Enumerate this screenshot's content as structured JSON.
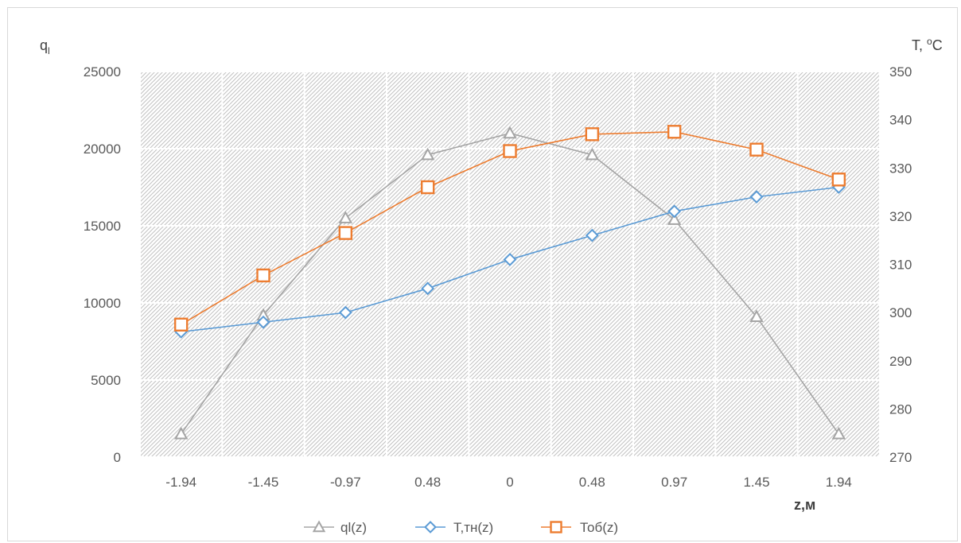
{
  "chart_data": {
    "type": "line",
    "y_left_label": "q",
    "y_left_label_sub": "l",
    "y_right_label": "T, ",
    "y_right_label_sup": "o",
    "y_right_label_unit": "C",
    "xlabel": "z,м",
    "categories": [
      "-1.94",
      "-1.45",
      "-0.97",
      "0.48",
      "0",
      "0.48",
      "0.97",
      "1.45",
      "1.94"
    ],
    "y_left_ticks": [
      "0",
      "5000",
      "10000",
      "15000",
      "20000",
      "25000"
    ],
    "y_right_ticks": [
      "270",
      "280",
      "290",
      "300",
      "310",
      "320",
      "330",
      "340",
      "350"
    ],
    "ylim_left": [
      0,
      25000
    ],
    "ylim_right": [
      270,
      350
    ],
    "grid": true,
    "legend_position": "bottom",
    "series": [
      {
        "name": "ql(z)",
        "axis": "left",
        "marker": "triangle",
        "color": "#a5a5a5",
        "values": [
          1500,
          9200,
          15500,
          19600,
          21000,
          19600,
          15400,
          9100,
          1500
        ]
      },
      {
        "name": "T,тн(z)",
        "axis": "right",
        "marker": "diamond",
        "color": "#5b9bd5",
        "values": [
          296,
          298,
          300,
          305,
          311,
          316,
          321,
          324,
          326
        ]
      },
      {
        "name": "Тоб(z)",
        "axis": "right",
        "marker": "square",
        "color": "#ed7d31",
        "values": [
          297.5,
          307.7,
          316.5,
          326,
          333.5,
          337,
          337.5,
          333.8,
          327.6
        ]
      }
    ]
  }
}
